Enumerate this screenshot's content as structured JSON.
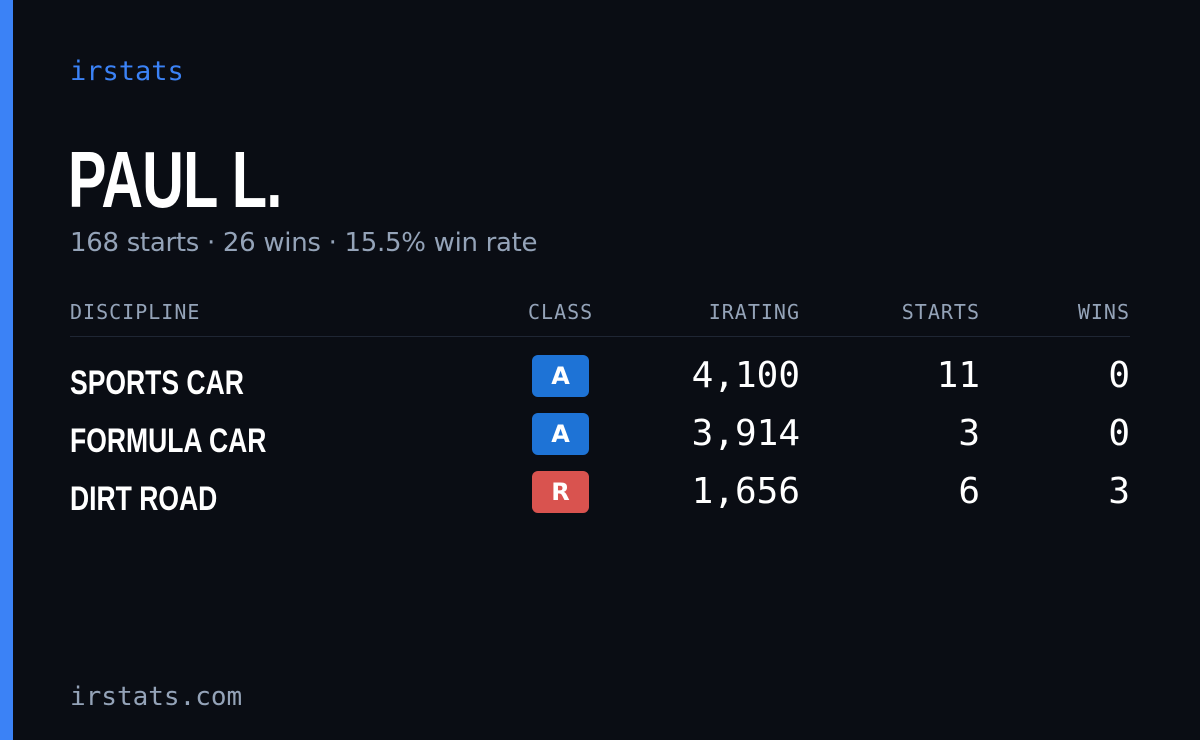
{
  "brand": "irstats",
  "driver": {
    "name": "PAUL L.",
    "summary": "168 starts · 26 wins · 15.5% win rate"
  },
  "table": {
    "headers": {
      "discipline": "DISCIPLINE",
      "class": "CLASS",
      "irating": "IRATING",
      "starts": "STARTS",
      "wins": "WINS"
    },
    "rows": [
      {
        "discipline": "SPORTS CAR",
        "class": "A",
        "class_color": "#1e73d6",
        "irating": "4,100",
        "starts": "11",
        "wins": "0"
      },
      {
        "discipline": "FORMULA CAR",
        "class": "A",
        "class_color": "#1e73d6",
        "irating": "3,914",
        "starts": "3",
        "wins": "0"
      },
      {
        "discipline": "DIRT ROAD",
        "class": "R",
        "class_color": "#d9534f",
        "irating": "1,656",
        "starts": "6",
        "wins": "3"
      }
    ]
  },
  "footer": {
    "url": "irstats.com"
  },
  "colors": {
    "background": "#0a0d14",
    "accent": "#3b82f6",
    "muted_text": "#94a3b8",
    "class_a": "#1e73d6",
    "class_r": "#d9534f"
  }
}
